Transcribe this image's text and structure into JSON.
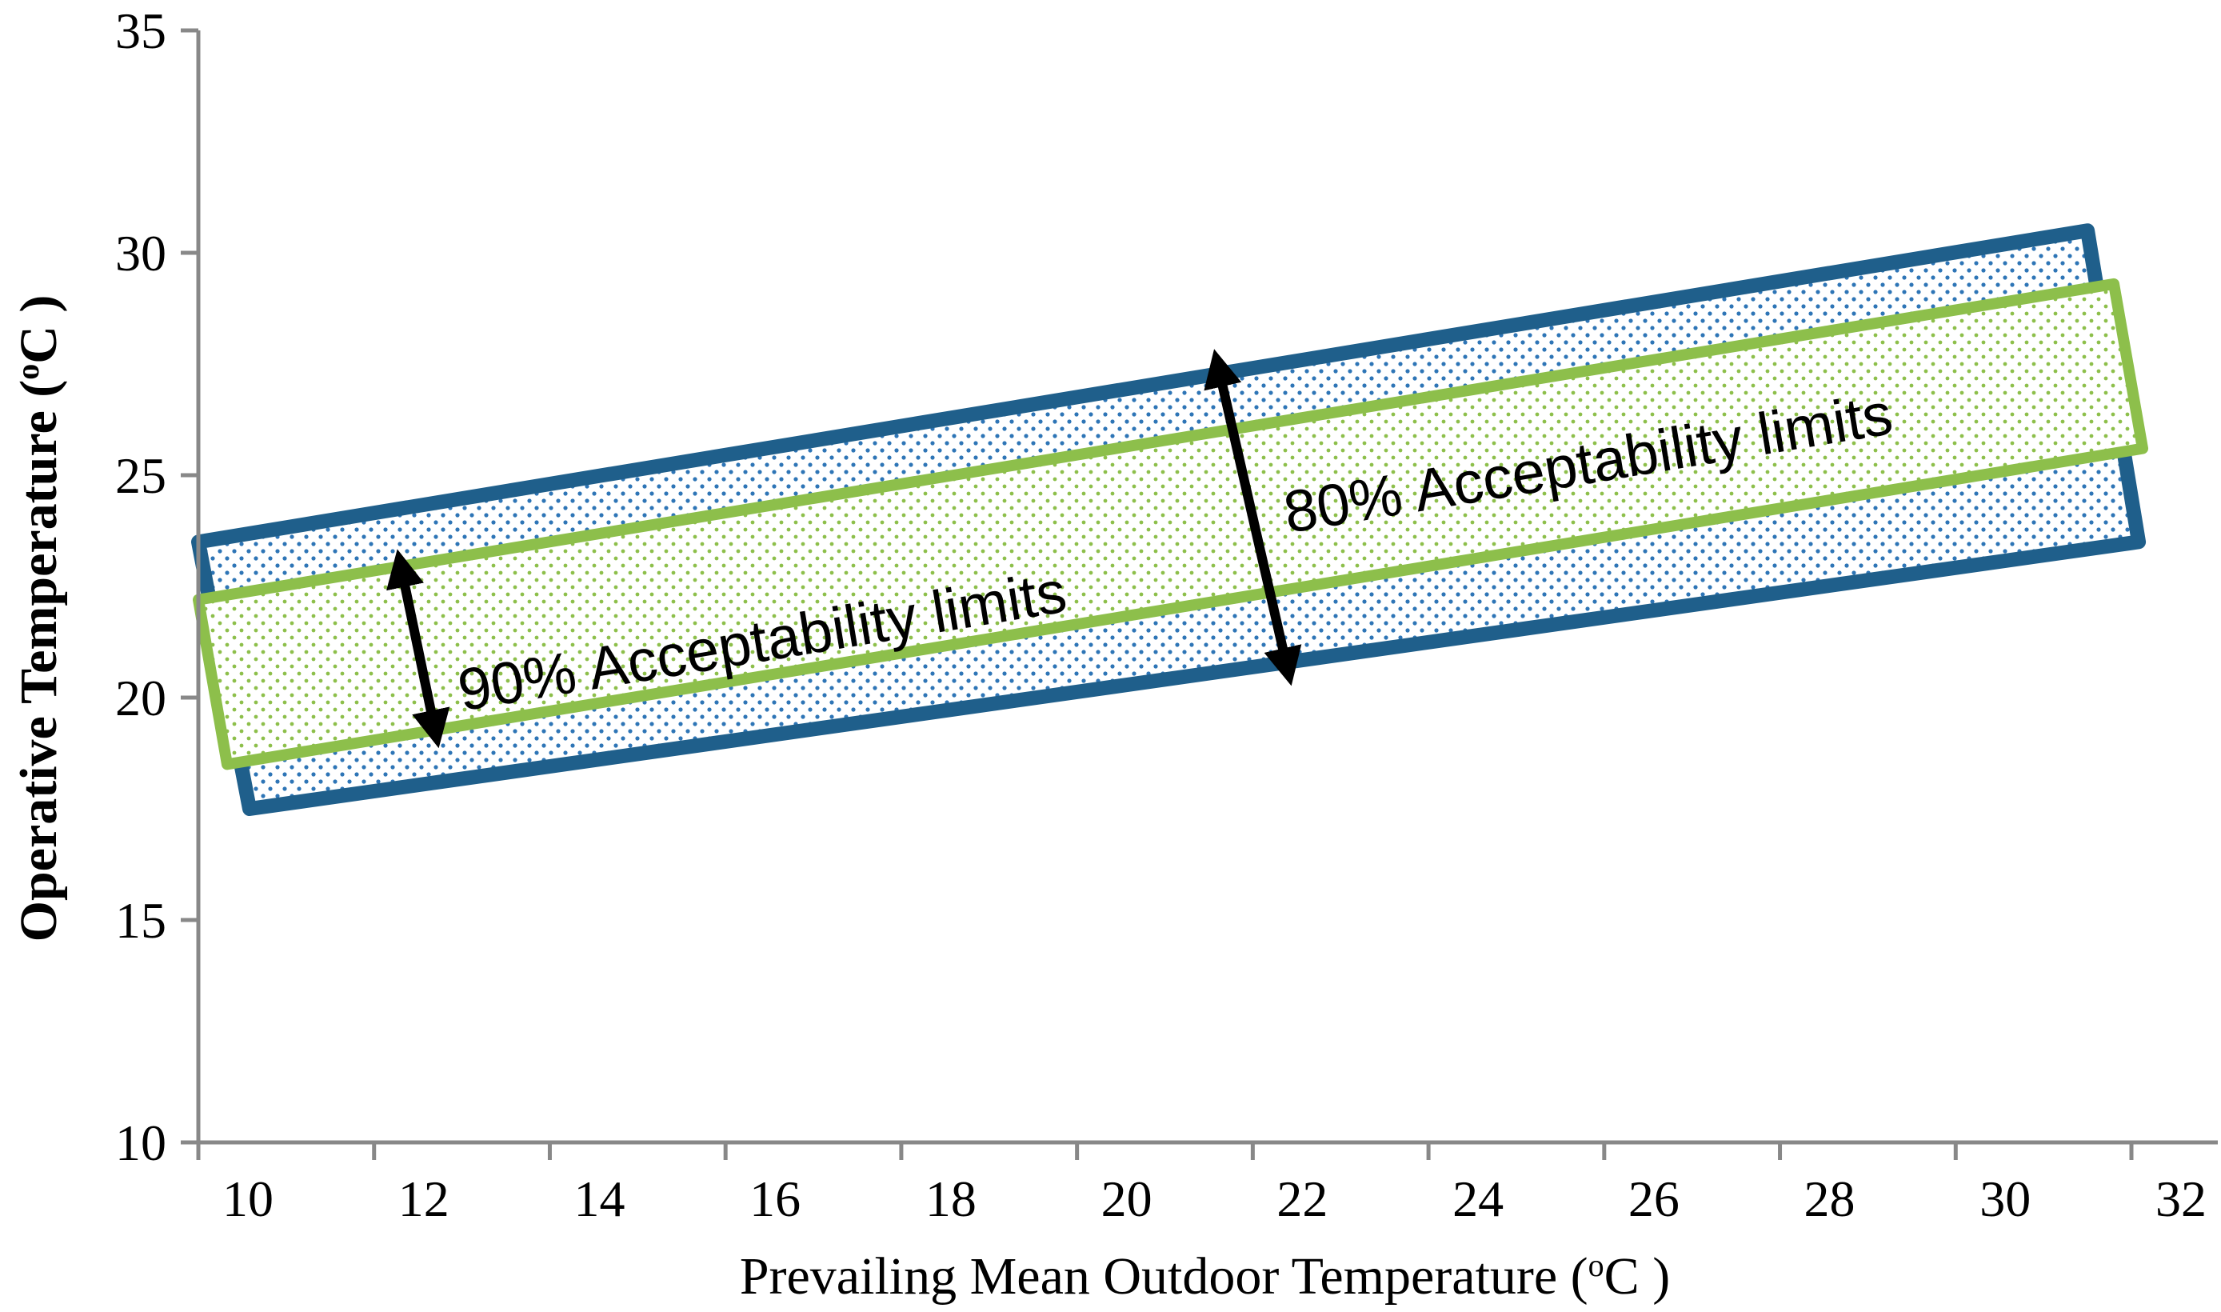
{
  "chart_data": {
    "type": "area",
    "title": "",
    "xlabel": "Prevailing Mean Outdoor Temperature (",
    "xlabel_unit": "o",
    "xlabel_unit_tail": "C )",
    "ylabel": "Operative Temperature (",
    "ylabel_unit": "o",
    "ylabel_unit_tail": "C )",
    "xlim": [
      10,
      32
    ],
    "ylim": [
      10,
      35
    ],
    "x_ticks": [
      "10",
      "12",
      "14",
      "16",
      "18",
      "20",
      "22",
      "24",
      "26",
      "28",
      "30",
      "32"
    ],
    "y_ticks": [
      "10",
      "15",
      "20",
      "25",
      "30",
      "35"
    ],
    "grid": false,
    "series": [
      {
        "name": "80% Acceptability limits",
        "color": "#1f5f8b",
        "fill_dot_color": "#2e75b6",
        "x": [
          10,
          31.5
        ],
        "upper": [
          23.5,
          30.5
        ],
        "lower": [
          17.5,
          23.5
        ]
      },
      {
        "name": "90% Acceptability limits",
        "color": "#8dbf4b",
        "fill_dot_color": "#8dbf4b",
        "x": [
          10,
          31.8
        ],
        "upper": [
          22.2,
          29.3
        ],
        "lower": [
          18.5,
          25.6
        ]
      }
    ],
    "annotations": [
      {
        "text": "90% Acceptability limits",
        "arrow_x": 12.5,
        "arrow_y": [
          23.0,
          19.2
        ]
      },
      {
        "text": "80% Acceptability limits",
        "arrow_x": 22.0,
        "arrow_y": [
          27.5,
          20.6
        ]
      }
    ]
  }
}
